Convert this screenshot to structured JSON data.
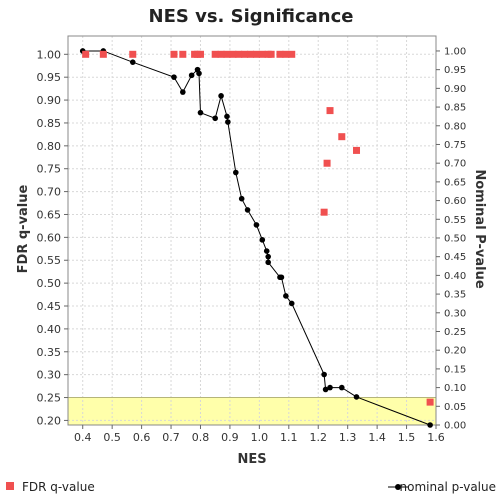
{
  "chart_data": {
    "type": "scatter",
    "title": "NES vs. Significance",
    "xlabel": "NES",
    "ylabel": "FDR q-value",
    "y2label": "Nominal P-value",
    "xlim": [
      0.35,
      1.6
    ],
    "ylim": [
      0.19,
      1.04
    ],
    "y2lim": [
      0.0,
      1.04
    ],
    "x_ticks": [
      "0.4",
      "0.5",
      "0.6",
      "0.7",
      "0.8",
      "0.9",
      "1.0",
      "1.1",
      "1.2",
      "1.3",
      "1.4",
      "1.5",
      "1.6"
    ],
    "y_ticks": [
      "0.20",
      "0.25",
      "0.30",
      "0.35",
      "0.40",
      "0.45",
      "0.50",
      "0.55",
      "0.60",
      "0.65",
      "0.70",
      "0.75",
      "0.80",
      "0.85",
      "0.90",
      "0.95",
      "1.00"
    ],
    "y2_ticks": [
      "0.00",
      "0.05",
      "0.10",
      "0.15",
      "0.20",
      "0.25",
      "0.30",
      "0.35",
      "0.40",
      "0.45",
      "0.50",
      "0.55",
      "0.60",
      "0.65",
      "0.70",
      "0.75",
      "0.80",
      "0.85",
      "0.90",
      "0.95",
      "1.00"
    ],
    "grid": true,
    "highlight_band": {
      "y_from": 0.19,
      "y_to": 0.25,
      "color": "#ffffaa"
    },
    "series": [
      {
        "name": "FDR q-value",
        "axis": "left",
        "marker": "square",
        "color": "#f05050",
        "x": [
          0.41,
          0.47,
          0.57,
          0.71,
          0.74,
          0.78,
          0.79,
          0.8,
          0.85,
          0.87,
          0.89,
          0.91,
          0.93,
          0.95,
          0.97,
          0.99,
          1.01,
          1.03,
          1.04,
          1.07,
          1.09,
          1.11,
          1.22,
          1.23,
          1.24,
          1.28,
          1.33,
          1.58
        ],
        "y": [
          1.0,
          1.0,
          1.0,
          1.0,
          1.0,
          1.0,
          1.0,
          1.0,
          1.0,
          1.0,
          1.0,
          1.0,
          1.0,
          1.0,
          1.0,
          1.0,
          1.0,
          1.0,
          1.0,
          1.0,
          1.0,
          1.0,
          0.655,
          0.762,
          0.877,
          0.82,
          0.79,
          0.24
        ]
      },
      {
        "name": "nominal p-value",
        "axis": "right",
        "marker": "circle-line",
        "color": "#000000",
        "x": [
          0.4,
          0.47,
          0.57,
          0.71,
          0.74,
          0.77,
          0.79,
          0.795,
          0.8,
          0.85,
          0.87,
          0.89,
          0.893,
          0.92,
          0.94,
          0.96,
          0.99,
          1.01,
          1.025,
          1.03,
          1.03,
          1.07,
          1.075,
          1.09,
          1.11,
          1.22,
          1.225,
          1.24,
          1.28,
          1.33,
          1.58
        ],
        "y": [
          1.0,
          1.0,
          0.97,
          0.93,
          0.89,
          0.935,
          0.95,
          0.94,
          0.835,
          0.82,
          0.88,
          0.825,
          0.81,
          0.675,
          0.605,
          0.575,
          0.535,
          0.495,
          0.465,
          0.45,
          0.435,
          0.395,
          0.395,
          0.345,
          0.325,
          0.135,
          0.095,
          0.1,
          0.1,
          0.075,
          0.0
        ]
      }
    ],
    "legend": [
      "FDR q-value",
      "nominal p-value"
    ]
  }
}
